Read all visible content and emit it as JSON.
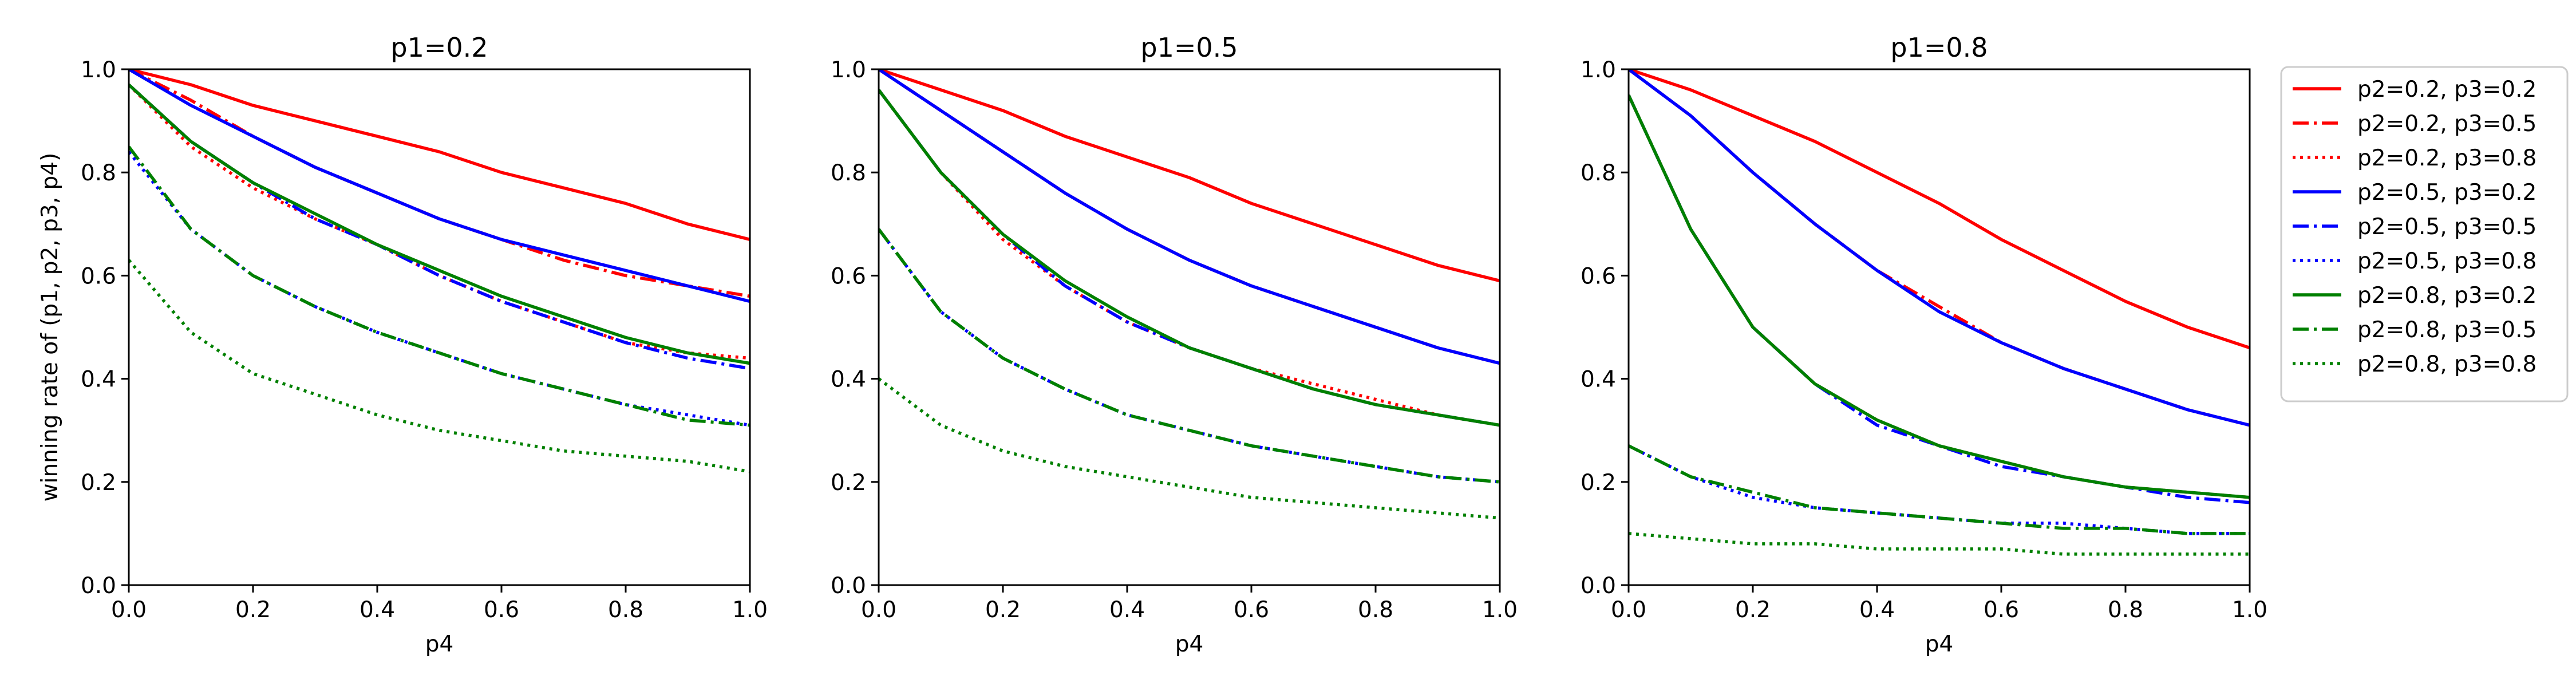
{
  "chart_data": [
    {
      "type": "line",
      "title": "p1=0.2",
      "xlabel": "p4",
      "ylabel": "winning rate of (p1, p2, p3, p4)",
      "xlim": [
        0.0,
        1.0
      ],
      "ylim": [
        0.0,
        1.0
      ],
      "xticks": [
        "0.0",
        "0.2",
        "0.4",
        "0.6",
        "0.8",
        "1.0"
      ],
      "yticks": [
        "0.0",
        "0.2",
        "0.4",
        "0.6",
        "0.8",
        "1.0"
      ],
      "grid": false,
      "x": [
        0.0,
        0.1,
        0.2,
        0.3,
        0.4,
        0.5,
        0.6,
        0.7,
        0.8,
        0.9,
        1.0
      ],
      "series": [
        {
          "name": "p2=0.2, p3=0.2",
          "color": "#ff0000",
          "style": "solid",
          "values": [
            1.0,
            0.97,
            0.93,
            0.9,
            0.87,
            0.84,
            0.8,
            0.77,
            0.74,
            0.7,
            0.67
          ]
        },
        {
          "name": "p2=0.2, p3=0.5",
          "color": "#ff0000",
          "style": "dashdot",
          "values": [
            1.0,
            0.94,
            0.87,
            0.81,
            0.76,
            0.71,
            0.67,
            0.63,
            0.6,
            0.58,
            0.56
          ]
        },
        {
          "name": "p2=0.2, p3=0.8",
          "color": "#ff0000",
          "style": "dotted",
          "values": [
            0.97,
            0.85,
            0.77,
            0.71,
            0.66,
            0.6,
            0.55,
            0.51,
            0.47,
            0.45,
            0.44
          ]
        },
        {
          "name": "p2=0.5, p3=0.2",
          "color": "#0000ff",
          "style": "solid",
          "values": [
            1.0,
            0.93,
            0.87,
            0.81,
            0.76,
            0.71,
            0.67,
            0.64,
            0.61,
            0.58,
            0.55
          ]
        },
        {
          "name": "p2=0.5, p3=0.5",
          "color": "#0000ff",
          "style": "dashdot",
          "values": [
            0.97,
            0.86,
            0.78,
            0.71,
            0.66,
            0.6,
            0.55,
            0.51,
            0.47,
            0.44,
            0.42
          ]
        },
        {
          "name": "p2=0.5, p3=0.8",
          "color": "#0000ff",
          "style": "dotted",
          "values": [
            0.84,
            0.69,
            0.6,
            0.54,
            0.49,
            0.45,
            0.41,
            0.38,
            0.35,
            0.33,
            0.31
          ]
        },
        {
          "name": "p2=0.8, p3=0.2",
          "color": "#008000",
          "style": "solid",
          "values": [
            0.97,
            0.86,
            0.78,
            0.72,
            0.66,
            0.61,
            0.56,
            0.52,
            0.48,
            0.45,
            0.43
          ]
        },
        {
          "name": "p2=0.8, p3=0.5",
          "color": "#008000",
          "style": "dashdot",
          "values": [
            0.85,
            0.69,
            0.6,
            0.54,
            0.49,
            0.45,
            0.41,
            0.38,
            0.35,
            0.32,
            0.31
          ]
        },
        {
          "name": "p2=0.8, p3=0.8",
          "color": "#008000",
          "style": "dotted",
          "values": [
            0.63,
            0.49,
            0.41,
            0.37,
            0.33,
            0.3,
            0.28,
            0.26,
            0.25,
            0.24,
            0.22
          ]
        }
      ]
    },
    {
      "type": "line",
      "title": "p1=0.5",
      "xlabel": "p4",
      "ylabel": "",
      "xlim": [
        0.0,
        1.0
      ],
      "ylim": [
        0.0,
        1.0
      ],
      "xticks": [
        "0.0",
        "0.2",
        "0.4",
        "0.6",
        "0.8",
        "1.0"
      ],
      "yticks": [
        "0.0",
        "0.2",
        "0.4",
        "0.6",
        "0.8",
        "1.0"
      ],
      "grid": false,
      "x": [
        0.0,
        0.1,
        0.2,
        0.3,
        0.4,
        0.5,
        0.6,
        0.7,
        0.8,
        0.9,
        1.0
      ],
      "series": [
        {
          "name": "p2=0.2, p3=0.2",
          "color": "#ff0000",
          "style": "solid",
          "values": [
            1.0,
            0.96,
            0.92,
            0.87,
            0.83,
            0.79,
            0.74,
            0.7,
            0.66,
            0.62,
            0.59
          ]
        },
        {
          "name": "p2=0.2, p3=0.5",
          "color": "#ff0000",
          "style": "dashdot",
          "values": [
            1.0,
            0.92,
            0.84,
            0.76,
            0.69,
            0.63,
            0.58,
            0.54,
            0.5,
            0.46,
            0.43
          ]
        },
        {
          "name": "p2=0.2, p3=0.8",
          "color": "#ff0000",
          "style": "dotted",
          "values": [
            0.96,
            0.8,
            0.67,
            0.58,
            0.51,
            0.46,
            0.42,
            0.39,
            0.36,
            0.33,
            0.31
          ]
        },
        {
          "name": "p2=0.5, p3=0.2",
          "color": "#0000ff",
          "style": "solid",
          "values": [
            1.0,
            0.92,
            0.84,
            0.76,
            0.69,
            0.63,
            0.58,
            0.54,
            0.5,
            0.46,
            0.43
          ]
        },
        {
          "name": "p2=0.5, p3=0.5",
          "color": "#0000ff",
          "style": "dashdot",
          "values": [
            0.96,
            0.8,
            0.68,
            0.58,
            0.51,
            0.46,
            0.42,
            0.38,
            0.35,
            0.33,
            0.31
          ]
        },
        {
          "name": "p2=0.5, p3=0.8",
          "color": "#0000ff",
          "style": "dotted",
          "values": [
            0.69,
            0.53,
            0.44,
            0.38,
            0.33,
            0.3,
            0.27,
            0.25,
            0.23,
            0.21,
            0.2
          ]
        },
        {
          "name": "p2=0.8, p3=0.2",
          "color": "#008000",
          "style": "solid",
          "values": [
            0.96,
            0.8,
            0.68,
            0.59,
            0.52,
            0.46,
            0.42,
            0.38,
            0.35,
            0.33,
            0.31
          ]
        },
        {
          "name": "p2=0.8, p3=0.5",
          "color": "#008000",
          "style": "dashdot",
          "values": [
            0.69,
            0.53,
            0.44,
            0.38,
            0.33,
            0.3,
            0.27,
            0.25,
            0.23,
            0.21,
            0.2
          ]
        },
        {
          "name": "p2=0.8, p3=0.8",
          "color": "#008000",
          "style": "dotted",
          "values": [
            0.4,
            0.31,
            0.26,
            0.23,
            0.21,
            0.19,
            0.17,
            0.16,
            0.15,
            0.14,
            0.13
          ]
        }
      ]
    },
    {
      "type": "line",
      "title": "p1=0.8",
      "xlabel": "p4",
      "ylabel": "",
      "xlim": [
        0.0,
        1.0
      ],
      "ylim": [
        0.0,
        1.0
      ],
      "xticks": [
        "0.0",
        "0.2",
        "0.4",
        "0.6",
        "0.8",
        "1.0"
      ],
      "yticks": [
        "0.0",
        "0.2",
        "0.4",
        "0.6",
        "0.8",
        "1.0"
      ],
      "grid": false,
      "x": [
        0.0,
        0.1,
        0.2,
        0.3,
        0.4,
        0.5,
        0.6,
        0.7,
        0.8,
        0.9,
        1.0
      ],
      "series": [
        {
          "name": "p2=0.2, p3=0.2",
          "color": "#ff0000",
          "style": "solid",
          "values": [
            1.0,
            0.96,
            0.91,
            0.86,
            0.8,
            0.74,
            0.67,
            0.61,
            0.55,
            0.5,
            0.46
          ]
        },
        {
          "name": "p2=0.2, p3=0.5",
          "color": "#ff0000",
          "style": "dashdot",
          "values": [
            1.0,
            0.91,
            0.8,
            0.7,
            0.61,
            0.54,
            0.47,
            0.42,
            0.38,
            0.34,
            0.31
          ]
        },
        {
          "name": "p2=0.2, p3=0.8",
          "color": "#ff0000",
          "style": "dotted",
          "values": [
            0.95,
            0.69,
            0.5,
            0.39,
            0.32,
            0.27,
            0.24,
            0.21,
            0.19,
            0.18,
            0.17
          ]
        },
        {
          "name": "p2=0.5, p3=0.2",
          "color": "#0000ff",
          "style": "solid",
          "values": [
            1.0,
            0.91,
            0.8,
            0.7,
            0.61,
            0.53,
            0.47,
            0.42,
            0.38,
            0.34,
            0.31
          ]
        },
        {
          "name": "p2=0.5, p3=0.5",
          "color": "#0000ff",
          "style": "dashdot",
          "values": [
            0.95,
            0.69,
            0.5,
            0.39,
            0.31,
            0.27,
            0.23,
            0.21,
            0.19,
            0.17,
            0.16
          ]
        },
        {
          "name": "p2=0.5, p3=0.8",
          "color": "#0000ff",
          "style": "dotted",
          "values": [
            0.27,
            0.21,
            0.17,
            0.15,
            0.14,
            0.13,
            0.12,
            0.12,
            0.11,
            0.1,
            0.1
          ]
        },
        {
          "name": "p2=0.8, p3=0.2",
          "color": "#008000",
          "style": "solid",
          "values": [
            0.95,
            0.69,
            0.5,
            0.39,
            0.32,
            0.27,
            0.24,
            0.21,
            0.19,
            0.18,
            0.17
          ]
        },
        {
          "name": "p2=0.8, p3=0.5",
          "color": "#008000",
          "style": "dashdot",
          "values": [
            0.27,
            0.21,
            0.18,
            0.15,
            0.14,
            0.13,
            0.12,
            0.11,
            0.11,
            0.1,
            0.1
          ]
        },
        {
          "name": "p2=0.8, p3=0.8",
          "color": "#008000",
          "style": "dotted",
          "values": [
            0.1,
            0.09,
            0.08,
            0.08,
            0.07,
            0.07,
            0.07,
            0.06,
            0.06,
            0.06,
            0.06
          ]
        }
      ]
    }
  ],
  "legend": {
    "placement": "right-outside",
    "entries": [
      {
        "label": "p2=0.2, p3=0.2",
        "color": "#ff0000",
        "style": "solid"
      },
      {
        "label": "p2=0.2, p3=0.5",
        "color": "#ff0000",
        "style": "dashdot"
      },
      {
        "label": "p2=0.2, p3=0.8",
        "color": "#ff0000",
        "style": "dotted"
      },
      {
        "label": "p2=0.5, p3=0.2",
        "color": "#0000ff",
        "style": "solid"
      },
      {
        "label": "p2=0.5, p3=0.5",
        "color": "#0000ff",
        "style": "dashdot"
      },
      {
        "label": "p2=0.5, p3=0.8",
        "color": "#0000ff",
        "style": "dotted"
      },
      {
        "label": "p2=0.8, p3=0.2",
        "color": "#008000",
        "style": "solid"
      },
      {
        "label": "p2=0.8, p3=0.5",
        "color": "#008000",
        "style": "dashdot"
      },
      {
        "label": "p2=0.8, p3=0.8",
        "color": "#008000",
        "style": "dotted"
      }
    ]
  }
}
